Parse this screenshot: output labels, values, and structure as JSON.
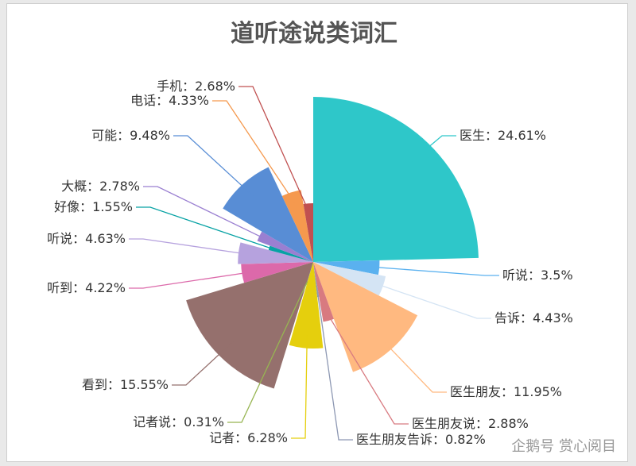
{
  "chart_data": {
    "type": "pie",
    "variant": "rose",
    "title": "道听途说类词汇",
    "slices": [
      {
        "label": "医生",
        "value": 24.61,
        "text": "医生：24.61%",
        "color": "#2ec7c9"
      },
      {
        "label": "听说",
        "value": 3.5,
        "text": "听说：3.5%",
        "color": "#5ab1ef"
      },
      {
        "label": "告诉",
        "value": 4.43,
        "text": "告诉：4.43%",
        "color": "#d4e4f4"
      },
      {
        "label": "医生朋友",
        "value": 11.95,
        "text": "医生朋友：11.95%",
        "color": "#ffb980"
      },
      {
        "label": "医生朋友说",
        "value": 2.88,
        "text": "医生朋友说：2.88%",
        "color": "#d87a80"
      },
      {
        "label": "医生朋友告诉",
        "value": 0.82,
        "text": "医生朋友告诉：0.82%",
        "color": "#8d98b3"
      },
      {
        "label": "记者",
        "value": 6.28,
        "text": "记者：6.28%",
        "color": "#e5cf0d"
      },
      {
        "label": "记者说",
        "value": 0.31,
        "text": "记者说：0.31%",
        "color": "#97b552"
      },
      {
        "label": "看到",
        "value": 15.55,
        "text": "看到：15.55%",
        "color": "#95706d"
      },
      {
        "label": "听到",
        "value": 4.22,
        "text": "听到：4.22%",
        "color": "#dc69aa"
      },
      {
        "label": "听说",
        "value": 4.63,
        "text": "听说：4.63%",
        "color": "#b6a2de"
      },
      {
        "label": "好像",
        "value": 1.55,
        "text": "好像：1.55%",
        "color": "#07a2a4"
      },
      {
        "label": "大概",
        "value": 2.78,
        "text": "大概：2.78%",
        "color": "#9a7fd1"
      },
      {
        "label": "可能",
        "value": 9.48,
        "text": "可能：9.48%",
        "color": "#588dd5"
      },
      {
        "label": "电话",
        "value": 4.33,
        "text": "电话：4.33%",
        "color": "#f5994e"
      },
      {
        "label": "手机",
        "value": 2.68,
        "text": "手机：2.68%",
        "color": "#c05050"
      }
    ]
  },
  "watermark": "企鹅号 赏心阅目"
}
